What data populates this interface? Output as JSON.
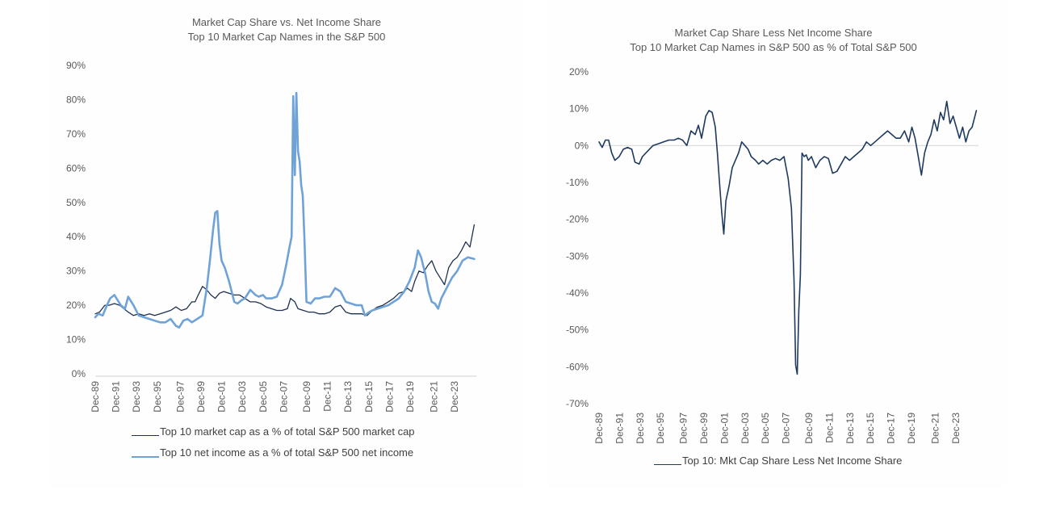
{
  "chart_data": [
    {
      "type": "line",
      "title": "Market Cap Share vs. Net Income Share",
      "subtitle": "Top 10 Market Cap Names in the S&P 500",
      "xlabel": "",
      "ylabel": "",
      "ylim": [
        0,
        90
      ],
      "yticks": [
        "0%",
        "10%",
        "20%",
        "30%",
        "40%",
        "50%",
        "60%",
        "70%",
        "80%",
        "90%"
      ],
      "xlim": [
        1989.9,
        2025.8
      ],
      "xticks": [
        "Dec-89",
        "Dec-91",
        "Dec-93",
        "Dec-95",
        "Dec-97",
        "Dec-99",
        "Dec-01",
        "Dec-03",
        "Dec-05",
        "Dec-07",
        "Dec-09",
        "Dec-11",
        "Dec-13",
        "Dec-15",
        "Dec-17",
        "Dec-19",
        "Dec-21",
        "Dec-23"
      ],
      "grid": false,
      "legend_position": "bottom",
      "series": [
        {
          "name": "Top 10 market cap as a % of total S&P 500 market cap",
          "color": "#1f3150",
          "x": [
            1989.9,
            1990.3,
            1990.8,
            1991.2,
            1991.7,
            1992.2,
            1992.6,
            1993.0,
            1993.5,
            1994.0,
            1994.5,
            1995.0,
            1995.5,
            1996.0,
            1996.5,
            1997.0,
            1997.5,
            1998.0,
            1998.5,
            1999.0,
            1999.3,
            1999.6,
            2000.0,
            2000.4,
            2000.8,
            2001.2,
            2001.6,
            2002.0,
            2002.5,
            2003.0,
            2003.5,
            2004.0,
            2004.5,
            2005.0,
            2005.5,
            2006.0,
            2006.5,
            2007.0,
            2007.5,
            2008.0,
            2008.3,
            2008.7,
            2009.0,
            2009.5,
            2010.0,
            2010.5,
            2011.0,
            2011.5,
            2012.0,
            2012.5,
            2013.0,
            2013.5,
            2014.0,
            2014.5,
            2015.0,
            2015.5,
            2016.0,
            2016.5,
            2017.0,
            2017.5,
            2018.0,
            2018.5,
            2019.0,
            2019.3,
            2019.7,
            2020.0,
            2020.4,
            2020.8,
            2021.2,
            2021.6,
            2022.0,
            2022.4,
            2022.8,
            2023.2,
            2023.6,
            2024.0,
            2024.4,
            2024.8,
            2025.2,
            2025.6
          ],
          "values": [
            17.5,
            18,
            20,
            20,
            20.5,
            20,
            19,
            18,
            17,
            17.5,
            17,
            17.5,
            17,
            17.5,
            18,
            18.5,
            19.5,
            18.5,
            19,
            21,
            21,
            23,
            25.5,
            24.5,
            23,
            22,
            23.5,
            24,
            23.5,
            23,
            23,
            22,
            21,
            21,
            20.5,
            19.5,
            19,
            18.5,
            18.5,
            19,
            22,
            21,
            19,
            18.5,
            18,
            18,
            17.5,
            17.5,
            18,
            19.5,
            20,
            18,
            17.5,
            17.5,
            17.5,
            17,
            18.5,
            19.5,
            20,
            21,
            22,
            23.5,
            24,
            25,
            24,
            27,
            30,
            29.5,
            31.5,
            33,
            30,
            28,
            26,
            31,
            33,
            34,
            36,
            38.5,
            37,
            43.5
          ]
        },
        {
          "name": "Top 10 net income as a % of total S&P 500 net income",
          "color": "#6fa3d8",
          "x": [
            1989.9,
            1990.2,
            1990.6,
            1991.0,
            1991.3,
            1991.7,
            1992.0,
            1992.3,
            1992.7,
            1993.0,
            1993.5,
            1994.0,
            1994.5,
            1995.0,
            1995.5,
            1996.0,
            1996.5,
            1997.0,
            1997.5,
            1997.8,
            1998.2,
            1998.6,
            1999.0,
            1999.5,
            2000.0,
            2000.4,
            2000.7,
            2001.0,
            2001.2,
            2001.4,
            2001.6,
            2001.8,
            2002.1,
            2002.5,
            2003.0,
            2003.3,
            2003.7,
            2004.0,
            2004.5,
            2005.0,
            2005.3,
            2005.7,
            2006.0,
            2006.5,
            2007.0,
            2007.5,
            2007.9,
            2008.2,
            2008.4,
            2008.55,
            2008.7,
            2008.85,
            2009.0,
            2009.15,
            2009.3,
            2009.45,
            2009.6,
            2009.8,
            2010.2,
            2010.6,
            2011.0,
            2011.5,
            2012.0,
            2012.5,
            2013.0,
            2013.5,
            2014.0,
            2014.5,
            2015.0,
            2015.3,
            2015.7,
            2016.0,
            2016.5,
            2017.0,
            2017.5,
            2018.0,
            2018.5,
            2019.0,
            2019.5,
            2020.0,
            2020.3,
            2020.6,
            2021.0,
            2021.3,
            2021.6,
            2021.9,
            2022.2,
            2022.5,
            2023.0,
            2023.5,
            2024.0,
            2024.5,
            2025.0,
            2025.6
          ],
          "values": [
            16.5,
            17.5,
            17,
            20,
            22,
            23,
            21.5,
            20,
            19,
            22.5,
            20,
            17,
            16.5,
            16,
            15.5,
            15,
            15,
            16,
            14,
            13.5,
            15.5,
            16,
            15,
            16,
            17,
            25,
            33,
            42,
            47,
            47.5,
            38,
            33,
            31,
            27,
            21,
            20.5,
            21.5,
            22,
            24.5,
            23,
            22.5,
            23,
            22,
            22,
            22.5,
            26,
            32,
            37,
            40,
            81,
            58,
            82,
            65,
            62,
            55,
            52,
            40,
            21,
            20.5,
            22,
            22,
            22.5,
            22.5,
            25,
            24,
            21,
            20.5,
            20,
            20,
            17,
            18,
            18.5,
            19,
            19.5,
            20,
            21,
            22,
            24,
            27,
            31,
            36,
            34,
            29,
            24,
            21,
            20.5,
            19,
            22,
            25,
            28,
            30,
            33,
            34,
            33.5
          ]
        }
      ]
    },
    {
      "type": "line",
      "title": "Market Cap Share Less Net Income Share",
      "subtitle": "Top 10 Market Cap Names in S&P 500 as % of Total S&P 500",
      "xlabel": "",
      "ylabel": "",
      "ylim": [
        -70,
        20
      ],
      "yticks": [
        "-70%",
        "-60%",
        "-50%",
        "-40%",
        "-30%",
        "-20%",
        "-10%",
        "0%",
        "10%",
        "20%"
      ],
      "xlim": [
        1989.9,
        2025.8
      ],
      "xticks": [
        "Dec-89",
        "Dec-91",
        "Dec-93",
        "Dec-95",
        "Dec-97",
        "Dec-99",
        "Dec-01",
        "Dec-03",
        "Dec-05",
        "Dec-07",
        "Dec-09",
        "Dec-11",
        "Dec-13",
        "Dec-15",
        "Dec-17",
        "Dec-19",
        "Dec-21",
        "Dec-23"
      ],
      "grid": false,
      "zero_line": true,
      "legend_position": "bottom",
      "series": [
        {
          "name": "Top 10: Mkt Cap Share Less Net Income Share",
          "color": "#1f3a5f",
          "x": [
            1989.9,
            1990.2,
            1990.5,
            1990.8,
            1991.1,
            1991.4,
            1991.8,
            1992.2,
            1992.6,
            1993.0,
            1993.3,
            1993.7,
            1994.0,
            1994.5,
            1995.0,
            1995.5,
            1996.0,
            1996.5,
            1997.0,
            1997.4,
            1997.8,
            1998.2,
            1998.6,
            1999.0,
            1999.3,
            1999.6,
            2000.0,
            2000.3,
            2000.6,
            2000.9,
            2001.1,
            2001.3,
            2001.5,
            2001.7,
            2001.9,
            2002.2,
            2002.5,
            2002.8,
            2003.1,
            2003.4,
            2003.7,
            2004.0,
            2004.3,
            2004.7,
            2005.0,
            2005.4,
            2005.8,
            2006.2,
            2006.6,
            2007.0,
            2007.4,
            2007.8,
            2008.1,
            2008.35,
            2008.5,
            2008.65,
            2008.8,
            2008.95,
            2009.1,
            2009.3,
            2009.5,
            2009.7,
            2010.0,
            2010.4,
            2010.8,
            2011.2,
            2011.6,
            2012.0,
            2012.4,
            2012.8,
            2013.2,
            2013.6,
            2014.0,
            2014.4,
            2014.8,
            2015.2,
            2015.6,
            2016.0,
            2016.4,
            2016.8,
            2017.2,
            2017.6,
            2018.0,
            2018.4,
            2018.8,
            2019.2,
            2019.5,
            2019.8,
            2020.1,
            2020.4,
            2020.7,
            2021.0,
            2021.3,
            2021.6,
            2021.9,
            2022.2,
            2022.5,
            2022.8,
            2023.1,
            2023.4,
            2023.7,
            2024.0,
            2024.3,
            2024.6,
            2024.9,
            2025.2,
            2025.6
          ],
          "values": [
            1,
            -0.5,
            1.5,
            1.5,
            -2,
            -4,
            -3,
            -1,
            -0.5,
            -1,
            -4.5,
            -5,
            -3,
            -1.5,
            0,
            0.5,
            1,
            1.5,
            1.5,
            2,
            1.5,
            0,
            4,
            3,
            5.5,
            2,
            8,
            9.5,
            9,
            5,
            -2,
            -10,
            -18,
            -24,
            -15,
            -11,
            -6,
            -4,
            -2,
            1,
            0,
            -1,
            -3,
            -4,
            -5,
            -4,
            -5,
            -4,
            -3.5,
            -4,
            -3,
            -9,
            -17,
            -36.5,
            -59.5,
            -62,
            -45,
            -35,
            -2,
            -3,
            -2.5,
            -4,
            -3,
            -6,
            -4,
            -3,
            -3.5,
            -7.5,
            -7,
            -5,
            -3,
            -4,
            -3,
            -2,
            -1,
            1,
            0,
            1,
            2,
            3,
            4,
            3,
            2,
            2,
            4,
            1,
            5,
            2,
            -3,
            -8,
            -2,
            1,
            3,
            7,
            4,
            9,
            7,
            12,
            6,
            8,
            5,
            2,
            5,
            1,
            4,
            5,
            9.5
          ]
        }
      ]
    }
  ]
}
